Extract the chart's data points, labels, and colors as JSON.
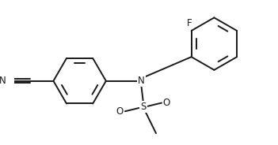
{
  "bg_color": "#ffffff",
  "line_color": "#1a1a1a",
  "lw": 1.4,
  "fs": 8.5,
  "figsize": [
    3.51,
    1.84
  ],
  "dpi": 100,
  "xlim": [
    -3.0,
    3.2
  ],
  "ylim": [
    -1.4,
    1.8
  ]
}
